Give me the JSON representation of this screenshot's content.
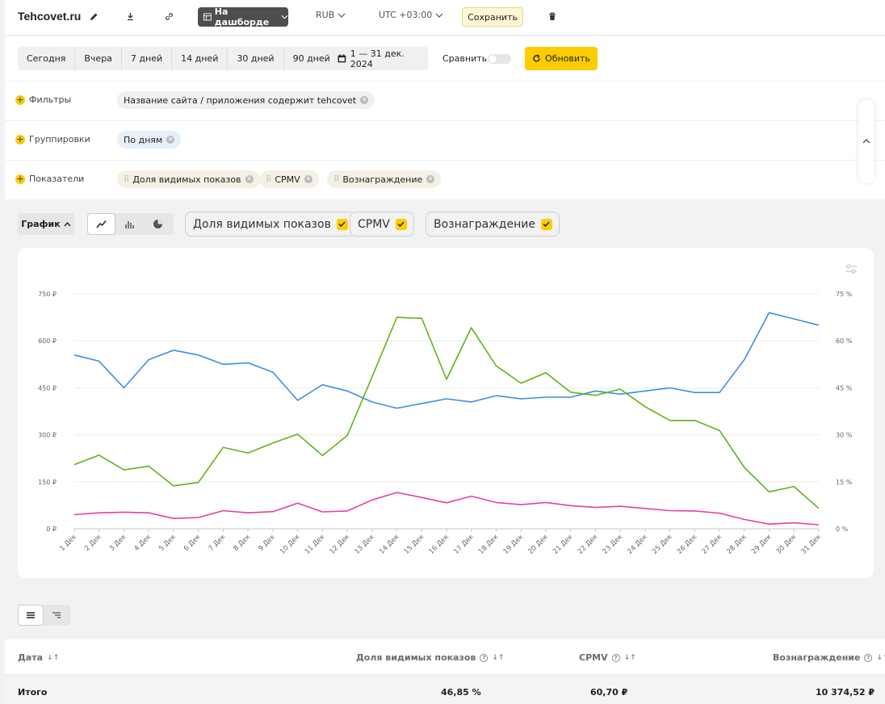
{
  "header": {
    "site": "Tehcovet.ru",
    "dashboard_label": "На дашборде",
    "currency": "RUB",
    "timezone": "UTC +03:00",
    "save_label": "Сохранить"
  },
  "period": {
    "presets": [
      "Сегодня",
      "Вчера",
      "7 дней",
      "14 дней",
      "30 дней",
      "90 дней"
    ],
    "date_range": "1 — 31 дек. 2024",
    "compare_label": "Сравнить",
    "refresh_label": "Обновить"
  },
  "filters": {
    "filters_label": "Фильтры",
    "filter_chip": "Название сайта / приложения содержит tehcovet",
    "groupings_label": "Группировки",
    "grouping_chip": "По дням",
    "metrics_label": "Показатели",
    "metric_chips": [
      "Доля видимых показов",
      "CPMV",
      "Вознаграждение"
    ]
  },
  "chart_toolbar": {
    "chart_label": "График",
    "series_toggles": [
      "Доля видимых показов",
      "CPMV",
      "Вознаграждение"
    ]
  },
  "colors": {
    "accent": "#ffcc00",
    "blue": "#3d8de6",
    "green": "#62b21a",
    "pink": "#e8409a"
  },
  "chart_data": {
    "type": "line",
    "x": [
      "1 Дек",
      "2 Дек",
      "3 Дек",
      "4 Дек",
      "5 Дек",
      "6 Дек",
      "7 Дек",
      "8 Дек",
      "9 Дек",
      "10 Дек",
      "11 Дек",
      "12 Дек",
      "13 Дек",
      "14 Дек",
      "15 Дек",
      "16 Дек",
      "17 Дек",
      "18 Дек",
      "19 Дек",
      "20 Дек",
      "21 Дек",
      "22 Дек",
      "23 Дек",
      "24 Дек",
      "25 Дек",
      "26 Дек",
      "27 Дек",
      "28 Дек",
      "29 Дек",
      "30 Дек",
      "31 Дек"
    ],
    "y_left_ticks": [
      "0 ₽",
      "150 ₽",
      "300 ₽",
      "450 ₽",
      "600 ₽",
      "750 ₽"
    ],
    "y_right_ticks": [
      "0 %",
      "15 %",
      "30 %",
      "45 %",
      "60 %",
      "75 %"
    ],
    "ylim_left": [
      0,
      750
    ],
    "ylim_right": [
      0,
      75
    ],
    "grid": true,
    "series": [
      {
        "axis": "right",
        "color": "#3d8de6",
        "values": [
          55.5,
          53.5,
          45,
          54,
          57,
          55.5,
          52.5,
          53,
          50,
          41,
          46,
          44,
          40.5,
          38.5,
          40,
          41.5,
          40.5,
          42.5,
          41.5,
          42,
          42,
          44,
          43,
          44,
          45,
          43.5,
          43.5,
          54,
          69,
          67,
          65
        ]
      },
      {
        "axis": "left",
        "color": "#62b21a",
        "values": [
          205,
          235,
          188,
          200,
          137,
          148,
          260,
          242,
          274,
          302,
          234,
          298,
          485,
          675,
          672,
          477,
          642,
          520,
          465,
          498,
          436,
          426,
          446,
          390,
          346,
          346,
          314,
          196,
          118,
          135,
          65
        ]
      },
      {
        "axis": "left",
        "color": "#e8409a",
        "values": [
          45,
          51,
          53,
          51,
          33,
          36,
          58,
          51,
          55,
          82,
          54,
          57,
          92,
          116,
          100,
          83,
          104,
          84,
          77,
          84,
          74,
          68,
          72,
          65,
          58,
          57,
          50,
          30,
          15,
          19,
          13
        ]
      }
    ]
  },
  "table": {
    "columns": [
      "Дата",
      "Доля видимых показов",
      "CPMV",
      "Вознаграждение"
    ],
    "total_label": "Итого",
    "totals": [
      "46,85 %",
      "60,70 ₽",
      "10 374,52 ₽"
    ]
  }
}
